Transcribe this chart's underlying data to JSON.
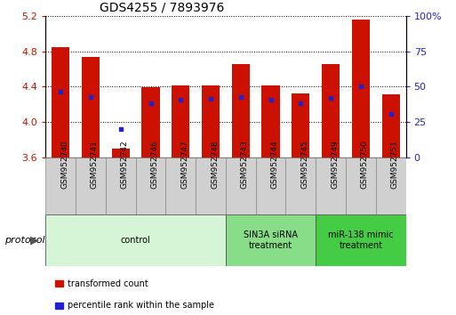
{
  "title": "GDS4255 / 7893976",
  "samples": [
    "GSM952740",
    "GSM952741",
    "GSM952742",
    "GSM952746",
    "GSM952747",
    "GSM952748",
    "GSM952743",
    "GSM952744",
    "GSM952745",
    "GSM952749",
    "GSM952750",
    "GSM952751"
  ],
  "bar_tops": [
    4.85,
    4.73,
    3.7,
    4.39,
    4.41,
    4.41,
    4.65,
    4.41,
    4.32,
    4.65,
    5.16,
    4.31
  ],
  "bar_bottom": 3.6,
  "blue_dots": [
    4.34,
    4.28,
    3.92,
    4.21,
    4.25,
    4.26,
    4.28,
    4.25,
    4.21,
    4.27,
    4.4,
    4.09
  ],
  "ylim": [
    3.6,
    5.2
  ],
  "yticks_left": [
    3.6,
    4.0,
    4.4,
    4.8,
    5.2
  ],
  "yticks_right_vals": [
    0,
    25,
    50,
    75,
    100
  ],
  "yticks_right_labels": [
    "0",
    "25",
    "50",
    "75",
    "100%"
  ],
  "bar_color": "#cc1100",
  "dot_color": "#2222cc",
  "background_color": "#ffffff",
  "plot_bg": "#ffffff",
  "title_fontsize": 10,
  "groups": [
    {
      "label": "control",
      "start": 0,
      "end": 5,
      "color": "#d6f5d6"
    },
    {
      "label": "SIN3A siRNA\ntreatment",
      "start": 6,
      "end": 8,
      "color": "#88dd88"
    },
    {
      "label": "miR-138 mimic\ntreatment",
      "start": 9,
      "end": 11,
      "color": "#44cc44"
    }
  ],
  "legend_items": [
    {
      "label": "transformed count",
      "color": "#cc1100"
    },
    {
      "label": "percentile rank within the sample",
      "color": "#2222cc"
    }
  ],
  "protocol_label": "protocol"
}
